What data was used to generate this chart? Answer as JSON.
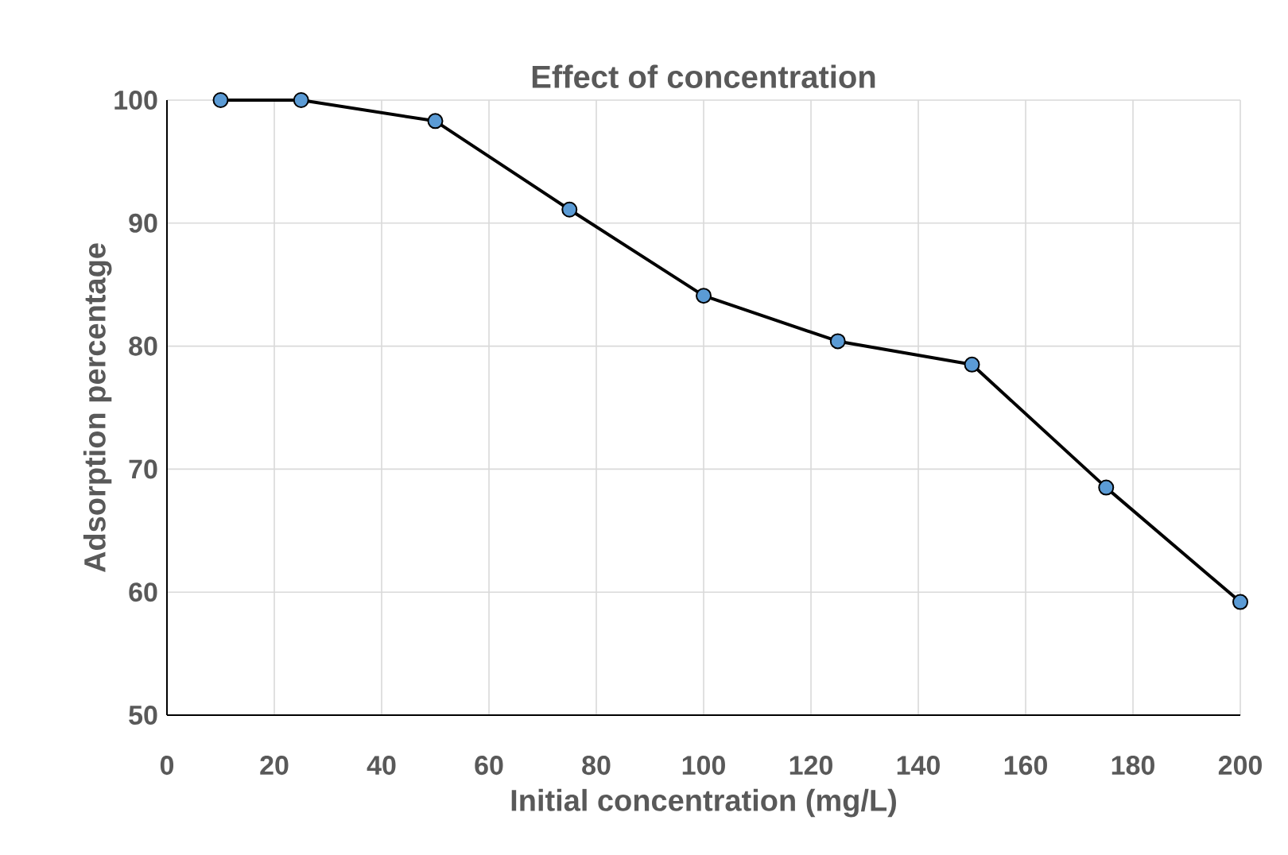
{
  "chart_data": {
    "type": "line",
    "title": "Effect of concentration",
    "xlabel": "Initial concentration (mg/L)",
    "ylabel": "Adsorption percentage",
    "x": [
      10,
      25,
      50,
      75,
      100,
      125,
      150,
      175,
      200
    ],
    "series": [
      {
        "color": "#000000",
        "values": [
          100,
          100,
          98.3,
          91.1,
          84.1,
          80.4,
          78.5,
          68.5,
          59.2
        ]
      }
    ],
    "marker": "circle",
    "line_style": "solid",
    "grid": true,
    "xlim": [
      0,
      200
    ],
    "xticks": [
      0,
      20,
      40,
      60,
      80,
      100,
      120,
      140,
      160,
      180,
      200
    ],
    "ylim": [
      50,
      100
    ],
    "yticks": [
      50,
      60,
      70,
      80,
      90,
      100
    ]
  }
}
